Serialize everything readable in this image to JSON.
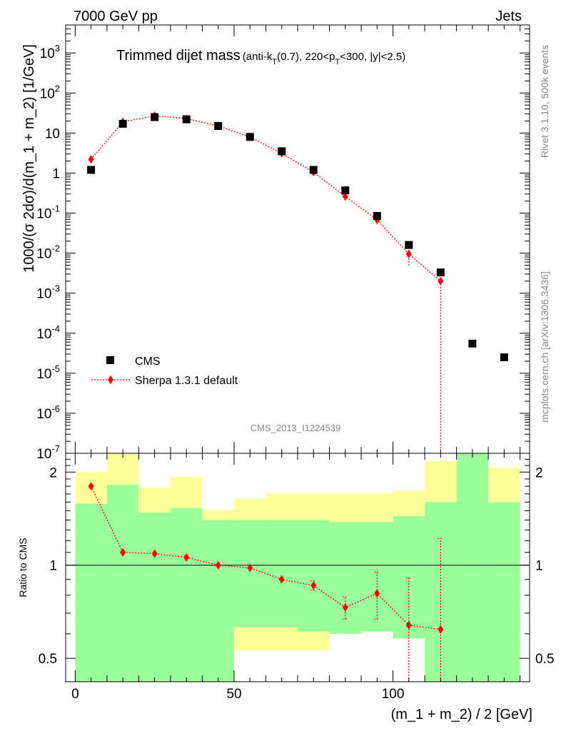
{
  "header": {
    "left": "7000 GeV pp",
    "right": "Jets"
  },
  "title_main": "Trimmed dijet mass",
  "title_cut": "(anti-k_T(0.7), 220<p_T<300, |y|<2.5)",
  "side": {
    "rivet": "Rivet 3.1.10,  500k events",
    "mcplots": "mcplots.cern.ch [arXiv:1306.3436]"
  },
  "analysis_id": "CMS_2013_I1224539",
  "legend": {
    "cms": "CMS",
    "sherpa": "Sherpa 1.3.1 default"
  },
  "ylabel_main": "1000/(σ 2dσ)/d(m_1 + m_2) [1/GeV]",
  "ylabel_ratio": "Ratio to CMS",
  "xlabel": "(m_1 + m_2) / 2 [GeV]",
  "colors": {
    "data": "#000000",
    "mc": "#ff0000",
    "band_inner": "#99ff99",
    "band_outer": "#ffff99"
  },
  "chart_data": [
    {
      "type": "scatter",
      "panel": "main",
      "log_y": true,
      "xlim": [
        -3,
        143
      ],
      "ylim": [
        1e-07,
        5000
      ],
      "x_ticks": [
        0,
        50,
        100
      ],
      "y_ticks": [
        "10^-7",
        "10^-6",
        "10^-5",
        "10^-4",
        "10^-3",
        "10^-2",
        "10^-1",
        "1",
        "10",
        "10^2",
        "10^3"
      ],
      "series": [
        {
          "name": "CMS",
          "x": [
            5,
            15,
            25,
            35,
            45,
            55,
            65,
            75,
            85,
            95,
            105,
            115,
            125,
            135
          ],
          "y": [
            1.2,
            17,
            25,
            22,
            15,
            8,
            3.5,
            1.2,
            0.37,
            0.085,
            0.016,
            0.0033,
            5.5e-05,
            2.5e-05
          ]
        },
        {
          "name": "Sherpa 1.3.1 default",
          "x": [
            5,
            15,
            25,
            35,
            45,
            55,
            65,
            75,
            85,
            95,
            105,
            115
          ],
          "y": [
            2.2,
            19,
            27,
            23,
            15,
            8,
            3.1,
            1.05,
            0.26,
            0.068,
            0.0095,
            0.002
          ],
          "err_lo": [
            0,
            0,
            0,
            0,
            0,
            0,
            0,
            0,
            0,
            0.015,
            0.0046,
            0.0019
          ],
          "err_hi": [
            0,
            0,
            0,
            0,
            0,
            0,
            0,
            0,
            0,
            0.015,
            0.0046,
            0.0019
          ]
        }
      ]
    },
    {
      "type": "line",
      "panel": "ratio",
      "log_y": true,
      "xlim": [
        -3,
        143
      ],
      "ylim": [
        0.42,
        2.3
      ],
      "y_ticks": [
        0.5,
        1,
        2
      ],
      "reference": 1,
      "bands": {
        "x_edges": [
          0,
          10,
          20,
          30,
          40,
          50,
          60,
          70,
          80,
          90,
          100,
          110,
          120,
          130,
          140
        ],
        "inner_lo": [
          0.42,
          0.42,
          0.42,
          0.42,
          0.42,
          0.63,
          0.63,
          0.61,
          0.6,
          0.61,
          0.58,
          0.42,
          0.42,
          0.42
        ],
        "inner_hi": [
          1.58,
          1.82,
          1.48,
          1.53,
          1.4,
          1.4,
          1.4,
          1.4,
          1.38,
          1.38,
          1.44,
          1.6,
          2.3,
          1.6
        ],
        "outer_lo": [
          0.56,
          0.42,
          0.61,
          0.56,
          0.84,
          0.53,
          0.53,
          0.53,
          0.67,
          0.69,
          0.64,
          0.5,
          0.42,
          0.42
        ],
        "outer_hi": [
          2.0,
          2.3,
          1.78,
          1.93,
          1.51,
          1.64,
          1.71,
          1.71,
          1.71,
          1.71,
          1.74,
          2.17,
          2.3,
          2.06
        ]
      },
      "series": [
        {
          "name": "Sherpa 1.3.1 default",
          "x": [
            5,
            15,
            25,
            35,
            45,
            55,
            65,
            75,
            85,
            95,
            105,
            115
          ],
          "y": [
            1.8,
            1.1,
            1.09,
            1.06,
            1.0,
            0.98,
            0.9,
            0.86,
            0.73,
            0.81,
            0.64,
            0.62
          ],
          "err_lo": [
            0,
            0,
            0,
            0,
            0,
            0,
            0,
            0.03,
            0.06,
            0.14,
            0.22,
            0.2
          ],
          "err_hi": [
            0,
            0,
            0,
            0,
            0,
            0,
            0,
            0.03,
            0.06,
            0.14,
            0.27,
            0.6
          ]
        }
      ]
    }
  ]
}
